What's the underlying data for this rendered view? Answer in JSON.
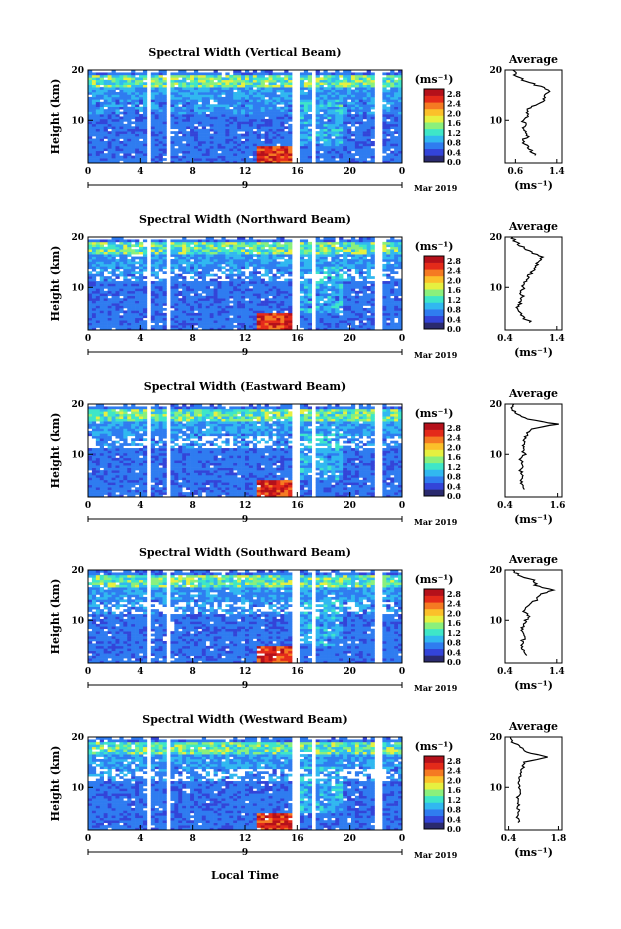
{
  "chart_data": {
    "type": "heatmap",
    "shared": {
      "xlabel": "Local Time",
      "date_label": "Mar 2019",
      "day_label": "9",
      "x_ticks": [
        "0",
        "4",
        "8",
        "12",
        "16",
        "20",
        "0"
      ],
      "xlim": [
        0,
        24
      ],
      "ylabel": "Height (km)",
      "y_ticks": [
        "20",
        "10"
      ],
      "colorbar": {
        "unit": "(ms⁻¹)",
        "tick_labels": [
          "2.8",
          "2.4",
          "2.0",
          "1.6",
          "1.2",
          "0.8",
          "0.4",
          "0.0"
        ],
        "range": [
          0,
          3.0
        ],
        "colors": [
          "#2a2a6e",
          "#3344d8",
          "#2f7cf0",
          "#31b8f0",
          "#3ee6c8",
          "#8af07c",
          "#e6f040",
          "#fbc02a",
          "#f57a22",
          "#e42a1a",
          "#b5101a"
        ]
      },
      "avg_title": "Average",
      "avg_xlabel": "(ms⁻¹)",
      "avg_y_ticks": [
        "20",
        "10"
      ]
    },
    "panels": [
      {
        "title": "Spectral Width (Vertical Beam)",
        "avg_x_ticks": [
          "0.6",
          "1.4"
        ],
        "avg_xlim": [
          0.4,
          1.5
        ],
        "avg_profile": [
          [
            1.0,
            3
          ],
          [
            0.9,
            4
          ],
          [
            0.8,
            5
          ],
          [
            0.75,
            6
          ],
          [
            0.85,
            7
          ],
          [
            0.75,
            8
          ],
          [
            0.8,
            9
          ],
          [
            0.75,
            10
          ],
          [
            0.85,
            11
          ],
          [
            0.8,
            12
          ],
          [
            1.0,
            13
          ],
          [
            1.15,
            14
          ],
          [
            1.2,
            15
          ],
          [
            1.25,
            16
          ],
          [
            1.0,
            17
          ],
          [
            0.75,
            18
          ],
          [
            0.6,
            19
          ],
          [
            0.55,
            20
          ]
        ]
      },
      {
        "title": "Spectral Width (Northward Beam)",
        "avg_x_ticks": [
          "0.4",
          "1.4"
        ],
        "avg_xlim": [
          0.4,
          1.5
        ],
        "avg_profile": [
          [
            0.9,
            3
          ],
          [
            0.75,
            4
          ],
          [
            0.7,
            5
          ],
          [
            0.65,
            6
          ],
          [
            0.7,
            7
          ],
          [
            0.75,
            8
          ],
          [
            0.7,
            9
          ],
          [
            0.75,
            10
          ],
          [
            0.8,
            11
          ],
          [
            0.85,
            12
          ],
          [
            0.9,
            13
          ],
          [
            1.0,
            14
          ],
          [
            1.05,
            15
          ],
          [
            1.1,
            16
          ],
          [
            0.9,
            17
          ],
          [
            0.75,
            18
          ],
          [
            0.6,
            19
          ],
          [
            0.55,
            20
          ]
        ]
      },
      {
        "title": "Spectral Width (Eastward Beam)",
        "avg_x_ticks": [
          "0.4",
          "1.6"
        ],
        "avg_xlim": [
          0.4,
          1.7
        ],
        "avg_profile": [
          [
            0.85,
            3
          ],
          [
            0.8,
            4
          ],
          [
            0.75,
            5
          ],
          [
            0.8,
            6
          ],
          [
            0.75,
            7
          ],
          [
            0.8,
            8
          ],
          [
            0.75,
            9
          ],
          [
            0.85,
            10
          ],
          [
            0.8,
            11
          ],
          [
            0.85,
            12
          ],
          [
            0.85,
            13
          ],
          [
            0.9,
            14
          ],
          [
            1.0,
            15
          ],
          [
            1.6,
            16
          ],
          [
            0.9,
            17
          ],
          [
            0.7,
            18
          ],
          [
            0.55,
            19
          ],
          [
            0.6,
            20
          ]
        ]
      },
      {
        "title": "Spectral Width (Southward Beam)",
        "avg_x_ticks": [
          "0.4",
          "1.4"
        ],
        "avg_xlim": [
          0.4,
          1.5
        ],
        "avg_profile": [
          [
            0.85,
            3
          ],
          [
            0.75,
            4
          ],
          [
            0.7,
            5
          ],
          [
            0.75,
            6
          ],
          [
            0.8,
            7
          ],
          [
            0.7,
            8
          ],
          [
            0.75,
            9
          ],
          [
            0.8,
            10
          ],
          [
            0.85,
            11
          ],
          [
            0.75,
            12
          ],
          [
            0.85,
            13
          ],
          [
            1.0,
            14
          ],
          [
            1.05,
            15
          ],
          [
            1.3,
            16
          ],
          [
            1.0,
            17
          ],
          [
            0.95,
            18
          ],
          [
            0.65,
            19
          ],
          [
            0.55,
            20
          ]
        ]
      },
      {
        "title": "Spectral Width (Westward Beam)",
        "avg_x_ticks": [
          "0.4",
          "1.8"
        ],
        "avg_xlim": [
          0.3,
          1.9
        ],
        "avg_profile": [
          [
            0.7,
            3
          ],
          [
            0.65,
            4
          ],
          [
            0.7,
            5
          ],
          [
            0.65,
            6
          ],
          [
            0.7,
            7
          ],
          [
            0.65,
            8
          ],
          [
            0.75,
            9
          ],
          [
            0.7,
            10
          ],
          [
            0.65,
            11
          ],
          [
            0.7,
            12
          ],
          [
            0.75,
            13
          ],
          [
            0.8,
            14
          ],
          [
            0.85,
            15
          ],
          [
            1.5,
            16
          ],
          [
            0.9,
            17
          ],
          [
            0.75,
            18
          ],
          [
            0.5,
            19
          ],
          [
            0.45,
            20
          ]
        ]
      }
    ]
  }
}
